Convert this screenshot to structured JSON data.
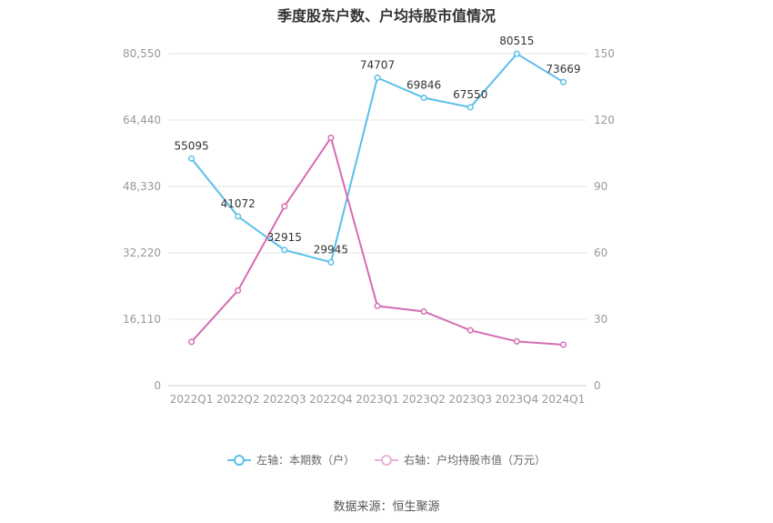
{
  "chart_data": {
    "type": "line",
    "title": "季度股东户数、户均持股市值情况",
    "categories": [
      "2022Q1",
      "2022Q2",
      "2022Q3",
      "2022Q4",
      "2023Q1",
      "2023Q2",
      "2023Q3",
      "2023Q4",
      "2024Q1"
    ],
    "left_axis": {
      "ticks": [
        "0",
        "16,110",
        "32,220",
        "48,330",
        "64,440",
        "80,550"
      ],
      "ylim": [
        0,
        80550
      ]
    },
    "right_axis": {
      "ticks": [
        "0",
        "30",
        "60",
        "90",
        "120",
        "150"
      ],
      "ylim": [
        0,
        150
      ]
    },
    "series": [
      {
        "name": "左轴：本期数（户）",
        "axis": "left",
        "color": "#5bbfea",
        "values": [
          55095,
          41072,
          32915,
          29945,
          74707,
          69846,
          67550,
          80515,
          73669
        ],
        "labels": [
          "55095",
          "41072",
          "32915",
          "29945",
          "74707",
          "69846",
          "67550",
          "80515",
          "73669"
        ]
      },
      {
        "name": "右轴：户均持股市值（万元）",
        "axis": "right",
        "color": "#d56db4",
        "values": [
          19.8,
          43.0,
          81.0,
          112.0,
          36.0,
          33.5,
          25.0,
          20.0,
          18.5
        ]
      }
    ],
    "grid": true,
    "legend_position": "bottom"
  },
  "source": "数据来源：恒生聚源"
}
